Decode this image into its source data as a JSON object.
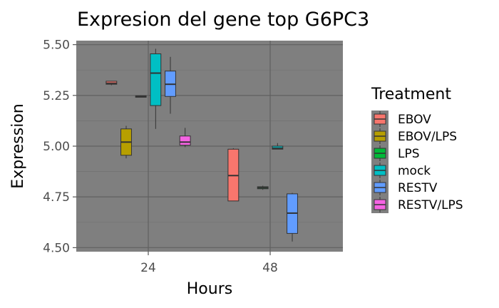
{
  "chart_data": {
    "type": "boxplot",
    "title": "Expresion del gene top G6PC3",
    "xlabel": "Hours",
    "ylabel": "Expression",
    "categories": [
      "24",
      "48"
    ],
    "ylim": [
      4.48,
      5.52
    ],
    "yticks": [
      "4.50",
      "4.75",
      "5.00",
      "5.25",
      "5.50"
    ],
    "grid": true,
    "legend": {
      "title": "Treatment",
      "position": "right",
      "entries": [
        "EBOV",
        "EBOV/LPS",
        "LPS",
        "mock",
        "RESTV",
        "RESTV/LPS"
      ]
    },
    "colors": {
      "EBOV": "#F8766D",
      "EBOV/LPS": "#B79F00",
      "LPS": "#00BA38",
      "mock": "#00BFC4",
      "RESTV": "#619CFF",
      "RESTV/LPS": "#F564E3",
      "panel": "#7f7f7f",
      "grid_major": "#606060",
      "grid_minor": "#737373"
    },
    "series": [
      {
        "name": "EBOV",
        "boxes": [
          {
            "x": "24",
            "min": 5.3,
            "q1": 5.305,
            "median": 5.31,
            "q3": 5.32,
            "max": 5.32
          },
          {
            "x": "48",
            "min": 4.73,
            "q1": 4.73,
            "median": 4.855,
            "q3": 4.985,
            "max": 4.99
          }
        ]
      },
      {
        "name": "EBOV/LPS",
        "boxes": [
          {
            "x": "24",
            "min": 4.94,
            "q1": 4.955,
            "median": 5.02,
            "q3": 5.085,
            "max": 5.1
          }
        ]
      },
      {
        "name": "LPS",
        "boxes": [
          {
            "x": "24",
            "min": 5.245,
            "q1": 5.245,
            "median": 5.245,
            "q3": 5.248,
            "max": 5.25
          },
          {
            "x": "48",
            "min": 4.785,
            "q1": 4.79,
            "median": 4.795,
            "q3": 4.8,
            "max": 4.805
          }
        ]
      },
      {
        "name": "mock",
        "boxes": [
          {
            "x": "24",
            "min": 5.085,
            "q1": 5.2,
            "median": 5.36,
            "q3": 5.455,
            "max": 5.48
          },
          {
            "x": "48",
            "min": 4.985,
            "q1": 4.985,
            "median": 4.99,
            "q3": 5.0,
            "max": 5.015
          }
        ]
      },
      {
        "name": "RESTV",
        "boxes": [
          {
            "x": "24",
            "min": 5.16,
            "q1": 5.245,
            "median": 5.305,
            "q3": 5.37,
            "max": 5.44
          },
          {
            "x": "48",
            "min": 4.53,
            "q1": 4.57,
            "median": 4.67,
            "q3": 4.765,
            "max": 4.77
          }
        ]
      },
      {
        "name": "RESTV/LPS",
        "boxes": [
          {
            "x": "24",
            "min": 4.995,
            "q1": 5.005,
            "median": 5.02,
            "q3": 5.05,
            "max": 5.09
          }
        ]
      }
    ]
  }
}
